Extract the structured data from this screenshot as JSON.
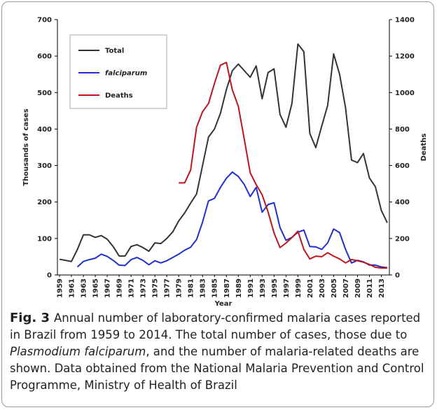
{
  "chart_data": {
    "type": "line",
    "xlabel": "Year",
    "ylabel": "Thousands of cases",
    "y2label": "Deaths",
    "legend": "upper left",
    "x": [
      1959,
      1960,
      1961,
      1962,
      1963,
      1964,
      1965,
      1966,
      1967,
      1968,
      1969,
      1970,
      1971,
      1972,
      1973,
      1974,
      1975,
      1976,
      1977,
      1978,
      1979,
      1980,
      1981,
      1982,
      1983,
      1984,
      1985,
      1986,
      1987,
      1988,
      1989,
      1990,
      1991,
      1992,
      1993,
      1994,
      1995,
      1996,
      1997,
      1998,
      1999,
      2000,
      2001,
      2002,
      2003,
      2004,
      2005,
      2006,
      2007,
      2008,
      2009,
      2010,
      2011,
      2012,
      2013,
      2014
    ],
    "xlim": [
      1959,
      2014
    ],
    "xticks": [
      1959,
      1961,
      1963,
      1965,
      1967,
      1969,
      1971,
      1973,
      1975,
      1977,
      1979,
      1981,
      1983,
      1985,
      1987,
      1989,
      1991,
      1993,
      1995,
      1997,
      1999,
      2001,
      2003,
      2005,
      2007,
      2009,
      2011,
      2013
    ],
    "ylim": [
      0,
      700
    ],
    "yticks": [
      0,
      100,
      200,
      300,
      400,
      500,
      600,
      700
    ],
    "y2lim": [
      0,
      1400
    ],
    "y2ticks": [
      0,
      200,
      400,
      600,
      800,
      1000,
      1200,
      1400
    ],
    "series": [
      {
        "name": "Total",
        "color": "#333333",
        "values": [
          43,
          40,
          37,
          70,
          110,
          110,
          103,
          108,
          98,
          78,
          52,
          52,
          78,
          83,
          75,
          65,
          88,
          86,
          100,
          118,
          148,
          170,
          197,
          222,
          300,
          378,
          400,
          443,
          508,
          560,
          578,
          560,
          542,
          573,
          483,
          555,
          565,
          440,
          405,
          470,
          633,
          612,
          388,
          349,
          408,
          465,
          606,
          550,
          458,
          315,
          308,
          333,
          266,
          242,
          177,
          143
        ]
      },
      {
        "name": "falciparum",
        "color": "#1f2fd0",
        "values": [
          null,
          null,
          null,
          22,
          37,
          42,
          46,
          57,
          51,
          40,
          27,
          26,
          42,
          48,
          40,
          28,
          39,
          33,
          39,
          48,
          57,
          68,
          76,
          97,
          145,
          203,
          210,
          240,
          265,
          282,
          270,
          248,
          215,
          240,
          172,
          193,
          198,
          130,
          95,
          103,
          117,
          123,
          78,
          77,
          70,
          88,
          126,
          116,
          70,
          33,
          40,
          36,
          27,
          27,
          22,
          20
        ]
      },
      {
        "name": "Deaths",
        "color": "#c0141c",
        "axis": "y2",
        "values": [
          null,
          null,
          null,
          null,
          null,
          null,
          null,
          null,
          null,
          null,
          null,
          null,
          null,
          null,
          null,
          null,
          null,
          null,
          null,
          null,
          505,
          505,
          575,
          810,
          895,
          940,
          1050,
          1150,
          1165,
          1015,
          925,
          745,
          560,
          495,
          440,
          345,
          230,
          150,
          175,
          205,
          240,
          140,
          88,
          103,
          100,
          122,
          103,
          88,
          66,
          85,
          78,
          70,
          58,
          42,
          38,
          38
        ]
      }
    ]
  },
  "caption": {
    "label": "Fig. 3",
    "text1": "Annual number of laboratory-confirmed malaria cases reported in Brazil from 1959 to 2014. The total number of cases, those due to ",
    "italic": "Plasmodium falciparum",
    "text2": ", and the number of malaria-related deaths are shown. Data obtained from the National Malaria Prevention and Control Programme, Ministry of Health of Brazil"
  }
}
